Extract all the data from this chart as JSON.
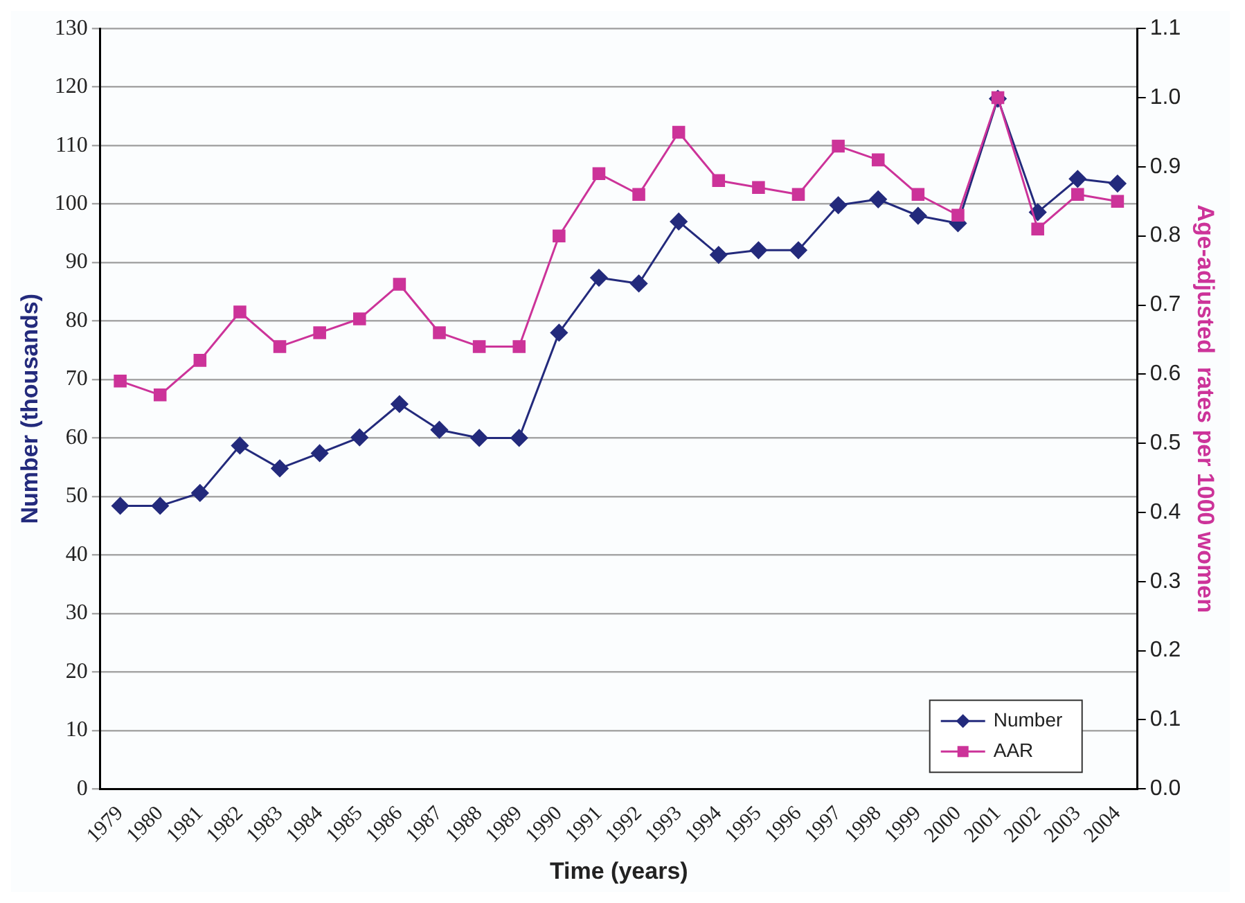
{
  "chart_data": {
    "type": "line",
    "xlabel": "Time (years)",
    "ylabel": "Number (thousands)",
    "y2label": "Age-adjusted  rates per 1000 women",
    "categories": [
      "1979",
      "1980",
      "1981",
      "1982",
      "1983",
      "1984",
      "1985",
      "1986",
      "1987",
      "1988",
      "1989",
      "1990",
      "1991",
      "1992",
      "1993",
      "1994",
      "1995",
      "1996",
      "1997",
      "1998",
      "1999",
      "2000",
      "2001",
      "2002",
      "2003",
      "2004"
    ],
    "series": [
      {
        "name": "Number",
        "color": "#232a7c",
        "marker": "diamond",
        "values": [
          48.4,
          48.4,
          50.6,
          58.7,
          54.8,
          57.4,
          60.1,
          65.8,
          61.4,
          60.0,
          60.0,
          78.0,
          87.4,
          86.4,
          97.0,
          91.3,
          92.1,
          92.1,
          99.8,
          100.8,
          98.0,
          96.7,
          118.0,
          98.6,
          104.3,
          103.5
        ]
      },
      {
        "name": "AAR",
        "color": "#cc3399",
        "marker": "square",
        "axis": "y2",
        "values": [
          0.59,
          0.57,
          0.62,
          0.69,
          0.64,
          0.66,
          0.68,
          0.73,
          0.66,
          0.64,
          0.64,
          0.8,
          0.89,
          0.86,
          0.95,
          0.88,
          0.87,
          0.86,
          0.93,
          0.91,
          0.86,
          0.83,
          1.0,
          0.81,
          0.86,
          0.85
        ]
      }
    ],
    "ylim": [
      0,
      130
    ],
    "yticks": [
      0,
      10,
      20,
      30,
      40,
      50,
      60,
      70,
      80,
      90,
      100,
      110,
      120,
      130
    ],
    "y2lim": [
      0,
      1.1
    ],
    "y2ticks": [
      {
        "value": 0,
        "label": "0.0"
      },
      {
        "value": 0.1,
        "label": "0.1"
      },
      {
        "value": 0.2,
        "label": "0.2"
      },
      {
        "value": 0.3,
        "label": "0.3"
      },
      {
        "value": 0.4,
        "label": "0.4"
      },
      {
        "value": 0.5,
        "label": "0.5"
      },
      {
        "value": 0.6,
        "label": "0.6"
      },
      {
        "value": 0.7,
        "label": "0.7"
      },
      {
        "value": 0.8,
        "label": "0.8"
      },
      {
        "value": 0.9,
        "label": "0.9"
      },
      {
        "value": 1,
        "label": "1.0"
      },
      {
        "value": 1.1,
        "label": "1.1"
      }
    ],
    "grid": "y",
    "legend": "bottom right",
    "line_style": "solid"
  }
}
